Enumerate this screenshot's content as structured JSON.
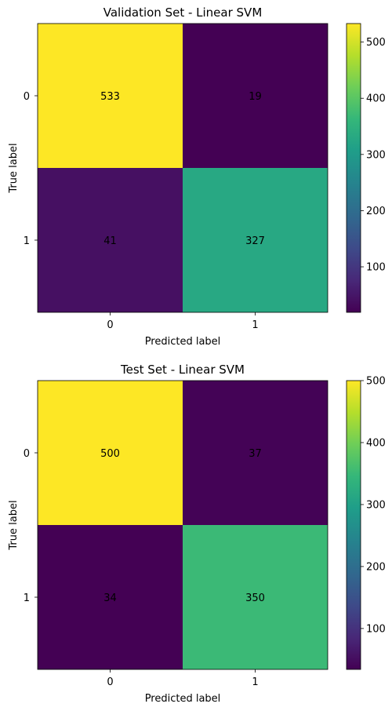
{
  "chart_data": [
    {
      "type": "heatmap",
      "title": "Validation Set - Linear SVM",
      "xlabel": "Predicted label",
      "ylabel": "True label",
      "x_categories": [
        "0",
        "1"
      ],
      "y_categories": [
        "0",
        "1"
      ],
      "values": [
        [
          533,
          19
        ],
        [
          41,
          327
        ]
      ],
      "colormap": "viridis",
      "colorbar": {
        "ticks": [
          "100",
          "200",
          "300",
          "400",
          "500"
        ],
        "tick_values": [
          100,
          200,
          300,
          400,
          500
        ],
        "range": [
          19,
          533
        ]
      }
    },
    {
      "type": "heatmap",
      "title": "Test Set - Linear SVM",
      "xlabel": "Predicted label",
      "ylabel": "True label",
      "x_categories": [
        "0",
        "1"
      ],
      "y_categories": [
        "0",
        "1"
      ],
      "values": [
        [
          500,
          37
        ],
        [
          34,
          350
        ]
      ],
      "colormap": "viridis",
      "colorbar": {
        "ticks": [
          "100",
          "200",
          "300",
          "400",
          "500"
        ],
        "tick_values": [
          100,
          200,
          300,
          400,
          500
        ],
        "range": [
          34,
          500
        ]
      }
    }
  ],
  "colors": {
    "text_on_dark": "#fde725",
    "text_on_light": "#000000"
  }
}
